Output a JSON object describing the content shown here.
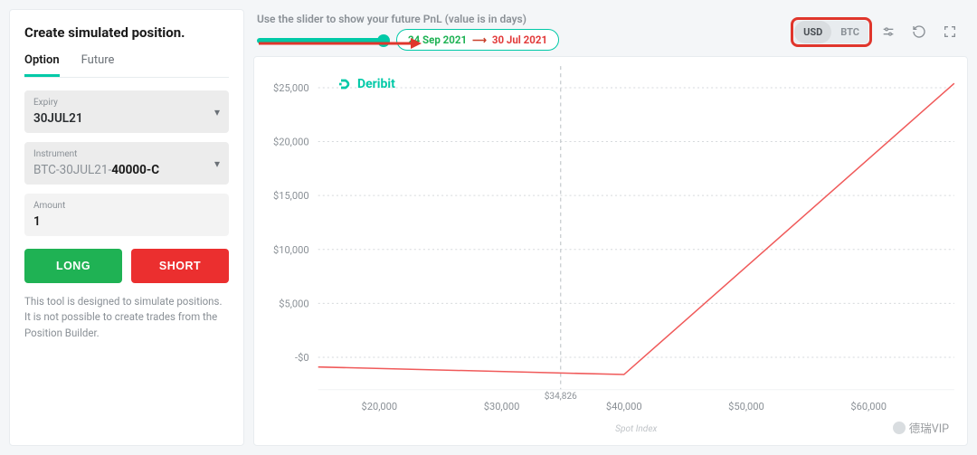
{
  "left": {
    "title": "Create simulated position.",
    "tabs": {
      "option": "Option",
      "future": "Future",
      "active": "option"
    },
    "expiry": {
      "label": "Expiry",
      "value": "30JUL21"
    },
    "instrument": {
      "label": "Instrument",
      "prefix": "BTC-30JUL21-",
      "strong": "40000-C"
    },
    "amount": {
      "label": "Amount",
      "value": "1"
    },
    "buttons": {
      "long": "LONG",
      "short": "SHORT"
    },
    "footnote": "This tool is designed to simulate positions. It is not possible to create trades from the Position Builder."
  },
  "top": {
    "hint": "Use the slider to show your future PnL (value is in days)",
    "date_from": "24 Sep 2021",
    "date_to": "30 Jul 2021",
    "currency": {
      "on": "USD",
      "off": "BTC"
    }
  },
  "chart": {
    "type": "line",
    "brand": "Deribit",
    "brand_color": "#00c9a7",
    "line_color": "#f05a5a",
    "line_width": 1.5,
    "background_color": "#ffffff",
    "grid_color": "#f0f2f4",
    "dotted_grid_color": "#d6d9dc",
    "axis_label_color": "#8a9096",
    "axis_label_fontsize": 11,
    "x_axis": {
      "min": 15000,
      "max": 67000,
      "ticks": [
        20000,
        30000,
        40000,
        50000,
        60000
      ],
      "tick_labels": [
        "$20,000",
        "$30,000",
        "$40,000",
        "$50,000",
        "$60,000"
      ],
      "cursor_value": 34826,
      "cursor_label": "$34,826",
      "label": "Spot Index"
    },
    "y_axis": {
      "min": -3000,
      "max": 27000,
      "ticks": [
        0,
        5000,
        10000,
        15000,
        20000,
        25000
      ],
      "tick_labels": [
        "-$0",
        "$5,000",
        "$10,000",
        "$15,000",
        "$20,000",
        "$25,000"
      ],
      "zero_tick_label": "-$0"
    },
    "series": {
      "red_payoff": {
        "color": "#f05a5a",
        "points": [
          [
            15000,
            -900
          ],
          [
            40000,
            -1600
          ],
          [
            67000,
            25400
          ]
        ]
      }
    }
  },
  "watermark": "德瑞VIP"
}
